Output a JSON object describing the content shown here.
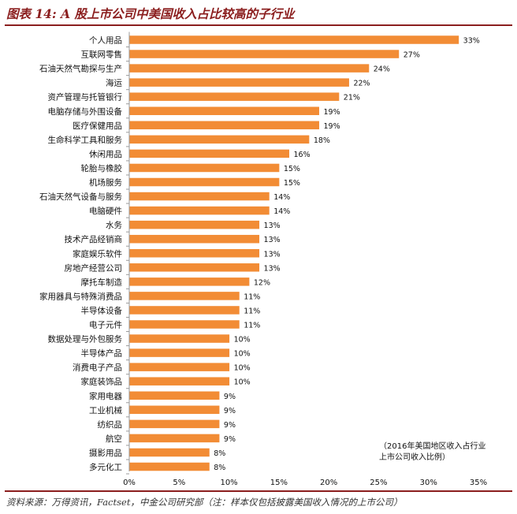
{
  "title": "图表 14: A 股上市公司中美国收入占比较高的子行业",
  "source": "资料来源：万得资讯，Factset，中金公司研究部（注：样本仅包括披露美国收入情况的上市公司）",
  "colors": {
    "bar": "#F28C35",
    "title": "#8B1E1E",
    "rule": "#8B1E1E"
  },
  "chart_data": {
    "type": "bar",
    "orientation": "horizontal",
    "categories": [
      "个人用品",
      "互联网零售",
      "石油天然气勘探与生产",
      "海运",
      "资产管理与托管银行",
      "电脑存储与外围设备",
      "医疗保健用品",
      "生命科学工具和服务",
      "休闲用品",
      "轮胎与橡胶",
      "机场服务",
      "石油天然气设备与服务",
      "电脑硬件",
      "水务",
      "技术产品经销商",
      "家庭娱乐软件",
      "房地产经营公司",
      "摩托车制造",
      "家用器具与特殊消费品",
      "半导体设备",
      "电子元件",
      "数据处理与外包服务",
      "半导体产品",
      "消费电子产品",
      "家庭装饰品",
      "家用电器",
      "工业机械",
      "纺织品",
      "航空",
      "摄影用品",
      "多元化工"
    ],
    "values": [
      33,
      27,
      24,
      22,
      21,
      19,
      19,
      18,
      16,
      15,
      15,
      14,
      14,
      13,
      13,
      13,
      13,
      12,
      11,
      11,
      11,
      10,
      10,
      10,
      10,
      9,
      9,
      9,
      9,
      8,
      8
    ],
    "data_labels": [
      "33%",
      "27%",
      "24%",
      "22%",
      "21%",
      "19%",
      "19%",
      "18%",
      "16%",
      "15%",
      "15%",
      "14%",
      "14%",
      "13%",
      "13%",
      "13%",
      "13%",
      "12%",
      "11%",
      "11%",
      "11%",
      "10%",
      "10%",
      "10%",
      "10%",
      "9%",
      "9%",
      "9%",
      "9%",
      "8%",
      "8%"
    ],
    "xlim": [
      0,
      35
    ],
    "xticks": [
      0,
      5,
      10,
      15,
      20,
      25,
      30,
      35
    ],
    "xtick_labels": [
      "0%",
      "5%",
      "10%",
      "15%",
      "20%",
      "25%",
      "30%",
      "35%"
    ],
    "annotation": [
      "（2016年美国地区收入占行业",
      "上市公司收入比例）"
    ],
    "grid": false,
    "legend": "none"
  }
}
